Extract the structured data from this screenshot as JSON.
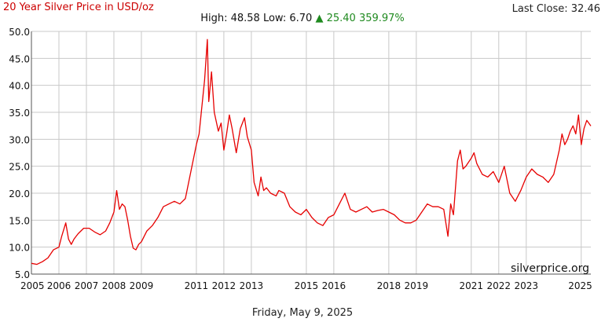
{
  "header": {
    "title": "20 Year Silver Price in USD/oz",
    "last_close_label": "Last Close: 32.46",
    "high_low_label": "High: 48.58 Low: 6.70",
    "change_arrow": "▲",
    "change_value": "25.40",
    "change_percent": "359.97%"
  },
  "footer": {
    "date": "Friday, May 9, 2025"
  },
  "watermark": "silverprice.org",
  "colors": {
    "line": "#e60000",
    "grid": "#c8c8c8",
    "title": "#cc0000",
    "up": "#1f8a1f"
  },
  "chart_data": {
    "type": "line",
    "title": "20 Year Silver Price in USD/oz",
    "xlabel": "",
    "ylabel": "",
    "xlim": [
      2005.0,
      2025.35
    ],
    "ylim": [
      5.0,
      50.0
    ],
    "x_tick_values": [
      2005,
      2006,
      2007,
      2008,
      2009,
      2011,
      2012,
      2013,
      2015,
      2016,
      2018,
      2019,
      2021,
      2022,
      2023,
      2025
    ],
    "x_tick_labels": [
      "2005",
      "2006",
      "2007",
      "2008",
      "2009",
      "2011",
      "2012",
      "2013",
      "2015",
      "2016",
      "2018",
      "2019",
      "2021",
      "2022",
      "2023",
      "2025"
    ],
    "y_tick_values": [
      5,
      10,
      15,
      20,
      25,
      30,
      35,
      40,
      45,
      50
    ],
    "y_tick_labels": [
      "5.0",
      "10.0",
      "15.0",
      "20.0",
      "25.0",
      "30.0",
      "35.0",
      "40.0",
      "45.0",
      "50.0"
    ],
    "grid": true,
    "series": [
      {
        "x": [
          2005.0,
          2005.2,
          2005.4,
          2005.6,
          2005.8,
          2006.0,
          2006.1,
          2006.25,
          2006.35,
          2006.45,
          2006.55,
          2006.7,
          2006.9,
          2007.1,
          2007.3,
          2007.5,
          2007.7,
          2007.85,
          2008.0,
          2008.1,
          2008.2,
          2008.3,
          2008.4,
          2008.5,
          2008.6,
          2008.7,
          2008.8,
          2008.9,
          2009.0,
          2009.2,
          2009.4,
          2009.6,
          2009.8,
          2010.0,
          2010.2,
          2010.4,
          2010.6,
          2010.8,
          2011.0,
          2011.1,
          2011.2,
          2011.3,
          2011.4,
          2011.45,
          2011.55,
          2011.65,
          2011.8,
          2011.9,
          2012.0,
          2012.1,
          2012.2,
          2012.3,
          2012.45,
          2012.6,
          2012.75,
          2012.85,
          2013.0,
          2013.1,
          2013.25,
          2013.35,
          2013.45,
          2013.55,
          2013.7,
          2013.9,
          2014.0,
          2014.2,
          2014.4,
          2014.6,
          2014.8,
          2015.0,
          2015.2,
          2015.4,
          2015.6,
          2015.8,
          2016.0,
          2016.2,
          2016.4,
          2016.5,
          2016.6,
          2016.8,
          2017.0,
          2017.2,
          2017.4,
          2017.6,
          2017.8,
          2018.0,
          2018.2,
          2018.4,
          2018.6,
          2018.8,
          2019.0,
          2019.2,
          2019.4,
          2019.6,
          2019.8,
          2020.0,
          2020.15,
          2020.25,
          2020.35,
          2020.5,
          2020.6,
          2020.7,
          2020.8,
          2021.0,
          2021.1,
          2021.2,
          2021.4,
          2021.6,
          2021.8,
          2022.0,
          2022.2,
          2022.4,
          2022.6,
          2022.8,
          2023.0,
          2023.2,
          2023.4,
          2023.6,
          2023.8,
          2024.0,
          2024.2,
          2024.3,
          2024.4,
          2024.5,
          2024.6,
          2024.7,
          2024.8,
          2024.9,
          2025.0,
          2025.1,
          2025.2,
          2025.35
        ],
        "y": [
          7.0,
          6.8,
          7.3,
          8.0,
          9.5,
          10.0,
          12.0,
          14.5,
          11.5,
          10.5,
          11.5,
          12.5,
          13.5,
          13.5,
          12.8,
          12.3,
          13.0,
          14.5,
          16.5,
          20.5,
          17.0,
          18.0,
          17.5,
          15.0,
          12.0,
          9.8,
          9.5,
          10.5,
          11.0,
          13.0,
          14.0,
          15.5,
          17.5,
          18.0,
          18.5,
          18.0,
          19.0,
          24.0,
          29.0,
          31.0,
          36.0,
          41.0,
          48.5,
          37.0,
          42.5,
          35.0,
          31.5,
          33.0,
          28.0,
          31.0,
          34.5,
          32.0,
          27.5,
          32.0,
          34.0,
          30.5,
          28.0,
          22.0,
          19.5,
          23.0,
          20.5,
          21.0,
          20.0,
          19.5,
          20.5,
          20.0,
          17.5,
          16.5,
          16.0,
          17.0,
          15.5,
          14.5,
          14.0,
          15.5,
          16.0,
          18.0,
          20.0,
          18.5,
          17.0,
          16.5,
          17.0,
          17.5,
          16.5,
          16.8,
          17.0,
          16.5,
          16.0,
          15.0,
          14.5,
          14.5,
          15.0,
          16.5,
          18.0,
          17.5,
          17.5,
          17.0,
          12.0,
          18.0,
          16.0,
          26.0,
          28.0,
          24.5,
          25.0,
          26.5,
          27.5,
          25.5,
          23.5,
          23.0,
          24.0,
          22.0,
          25.0,
          20.0,
          18.5,
          20.5,
          23.0,
          24.5,
          23.5,
          23.0,
          22.0,
          23.5,
          28.0,
          31.0,
          29.0,
          30.0,
          31.5,
          32.5,
          31.0,
          34.5,
          29.0,
          32.0,
          33.5,
          32.46
        ]
      }
    ]
  }
}
